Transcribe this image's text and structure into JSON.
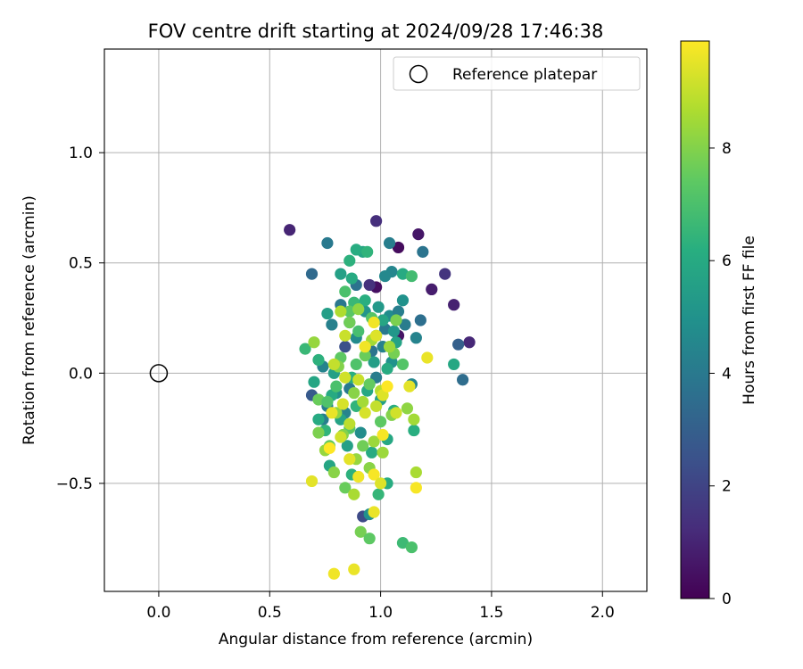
{
  "chart_data": {
    "type": "scatter",
    "title": "FOV centre drift starting at 2024/09/28 17:46:38",
    "xlabel": "Angular distance from reference (arcmin)",
    "ylabel": "Rotation from reference (arcmin)",
    "xlim": [
      -0.245,
      2.2
    ],
    "ylim": [
      -0.99,
      1.47
    ],
    "xticks": [
      0.0,
      0.5,
      1.0,
      1.5,
      2.0
    ],
    "xtick_labels": [
      "0.0",
      "0.5",
      "1.0",
      "1.5",
      "2.0"
    ],
    "yticks": [
      -0.5,
      0.0,
      0.5,
      1.0
    ],
    "ytick_labels": [
      "−0.5",
      "0.0",
      "0.5",
      "1.0"
    ],
    "grid": true,
    "legend": {
      "placement": "top-right",
      "entries": [
        "Reference platepar"
      ]
    },
    "reference_point": {
      "x": 0.0,
      "y": 0.0
    },
    "colorbar": {
      "label": "Hours from first FF file",
      "colormap": "viridis",
      "range": [
        0,
        9.9
      ],
      "ticks": [
        0,
        2,
        4,
        6,
        8
      ],
      "tick_labels": [
        "0",
        "2",
        "4",
        "6",
        "8"
      ]
    },
    "points": [
      {
        "x": 0.59,
        "y": 0.65,
        "c": 1.0
      },
      {
        "x": 0.98,
        "y": 0.69,
        "c": 1.3
      },
      {
        "x": 1.17,
        "y": 0.63,
        "c": 0.6
      },
      {
        "x": 1.08,
        "y": 0.57,
        "c": 0.3
      },
      {
        "x": 1.29,
        "y": 0.45,
        "c": 1.5
      },
      {
        "x": 1.23,
        "y": 0.38,
        "c": 0.8
      },
      {
        "x": 1.33,
        "y": 0.31,
        "c": 0.9
      },
      {
        "x": 1.4,
        "y": 0.14,
        "c": 1.1
      },
      {
        "x": 1.08,
        "y": 0.17,
        "c": 0.5
      },
      {
        "x": 0.98,
        "y": 0.39,
        "c": 0.4
      },
      {
        "x": 0.95,
        "y": 0.4,
        "c": 1.4
      },
      {
        "x": 0.92,
        "y": -0.65,
        "c": 2.2
      },
      {
        "x": 0.69,
        "y": -0.1,
        "c": 2.8
      },
      {
        "x": 0.84,
        "y": 0.12,
        "c": 2.4
      },
      {
        "x": 1.35,
        "y": 0.13,
        "c": 3.0
      },
      {
        "x": 1.37,
        "y": -0.03,
        "c": 3.5
      },
      {
        "x": 0.69,
        "y": 0.45,
        "c": 3.4
      },
      {
        "x": 0.76,
        "y": 0.59,
        "c": 4.0
      },
      {
        "x": 1.04,
        "y": 0.59,
        "c": 4.2
      },
      {
        "x": 1.19,
        "y": 0.55,
        "c": 3.8
      },
      {
        "x": 1.18,
        "y": 0.24,
        "c": 3.6
      },
      {
        "x": 1.16,
        "y": 0.16,
        "c": 4.4
      },
      {
        "x": 1.11,
        "y": 0.22,
        "c": 4.1
      },
      {
        "x": 0.82,
        "y": 0.31,
        "c": 3.9
      },
      {
        "x": 0.78,
        "y": 0.22,
        "c": 4.3
      },
      {
        "x": 0.89,
        "y": 0.4,
        "c": 3.7
      },
      {
        "x": 1.05,
        "y": 0.46,
        "c": 4.5
      },
      {
        "x": 1.02,
        "y": 0.44,
        "c": 4.6
      },
      {
        "x": 1.02,
        "y": 0.2,
        "c": 4.0
      },
      {
        "x": 1.04,
        "y": 0.26,
        "c": 4.8
      },
      {
        "x": 1.08,
        "y": 0.28,
        "c": 4.2
      },
      {
        "x": 0.96,
        "y": 0.1,
        "c": 3.8
      },
      {
        "x": 0.86,
        "y": 0.23,
        "c": 4.6
      },
      {
        "x": 0.74,
        "y": 0.03,
        "c": 4.4
      },
      {
        "x": 0.76,
        "y": -0.15,
        "c": 4.2
      },
      {
        "x": 0.8,
        "y": -0.09,
        "c": 4.9
      },
      {
        "x": 0.86,
        "y": -0.07,
        "c": 4.0
      },
      {
        "x": 0.89,
        "y": 0.16,
        "c": 4.7
      },
      {
        "x": 1.01,
        "y": 0.12,
        "c": 4.3
      },
      {
        "x": 1.05,
        "y": 0.05,
        "c": 5.0
      },
      {
        "x": 1.14,
        "y": -0.05,
        "c": 4.5
      },
      {
        "x": 0.98,
        "y": -0.02,
        "c": 4.1
      },
      {
        "x": 0.91,
        "y": -0.27,
        "c": 4.8
      },
      {
        "x": 0.84,
        "y": -0.18,
        "c": 4.4
      },
      {
        "x": 0.74,
        "y": -0.21,
        "c": 4.2
      },
      {
        "x": 0.95,
        "y": -0.64,
        "c": 4.9
      },
      {
        "x": 0.93,
        "y": 0.28,
        "c": 5.1
      },
      {
        "x": 0.99,
        "y": 0.3,
        "c": 5.3
      },
      {
        "x": 1.1,
        "y": 0.33,
        "c": 5.0
      },
      {
        "x": 1.06,
        "y": 0.19,
        "c": 5.2
      },
      {
        "x": 0.76,
        "y": 0.27,
        "c": 5.5
      },
      {
        "x": 0.82,
        "y": 0.45,
        "c": 5.6
      },
      {
        "x": 0.92,
        "y": 0.55,
        "c": 5.8
      },
      {
        "x": 0.89,
        "y": 0.56,
        "c": 6.1
      },
      {
        "x": 0.87,
        "y": 0.43,
        "c": 6.0
      },
      {
        "x": 0.86,
        "y": 0.51,
        "c": 6.3
      },
      {
        "x": 1.1,
        "y": 0.45,
        "c": 6.0
      },
      {
        "x": 1.33,
        "y": 0.04,
        "c": 5.9
      },
      {
        "x": 0.94,
        "y": 0.55,
        "c": 6.4
      },
      {
        "x": 0.88,
        "y": 0.32,
        "c": 6.6
      },
      {
        "x": 0.93,
        "y": 0.33,
        "c": 6.2
      },
      {
        "x": 1.01,
        "y": 0.24,
        "c": 5.8
      },
      {
        "x": 0.98,
        "y": 0.17,
        "c": 6.1
      },
      {
        "x": 1.07,
        "y": 0.14,
        "c": 5.7
      },
      {
        "x": 1.03,
        "y": 0.02,
        "c": 6.0
      },
      {
        "x": 0.97,
        "y": 0.05,
        "c": 5.5
      },
      {
        "x": 0.94,
        "y": -0.08,
        "c": 5.9
      },
      {
        "x": 0.87,
        "y": -0.02,
        "c": 6.2
      },
      {
        "x": 0.79,
        "y": 0.0,
        "c": 5.6
      },
      {
        "x": 0.72,
        "y": 0.06,
        "c": 6.3
      },
      {
        "x": 0.7,
        "y": -0.04,
        "c": 5.8
      },
      {
        "x": 0.78,
        "y": -0.1,
        "c": 6.0
      },
      {
        "x": 0.82,
        "y": -0.21,
        "c": 5.7
      },
      {
        "x": 0.89,
        "y": -0.15,
        "c": 6.4
      },
      {
        "x": 1.0,
        "y": -0.12,
        "c": 5.6
      },
      {
        "x": 1.06,
        "y": -0.17,
        "c": 6.1
      },
      {
        "x": 1.15,
        "y": -0.26,
        "c": 6.2
      },
      {
        "x": 1.03,
        "y": -0.3,
        "c": 5.9
      },
      {
        "x": 0.96,
        "y": -0.36,
        "c": 6.0
      },
      {
        "x": 0.85,
        "y": -0.33,
        "c": 5.6
      },
      {
        "x": 0.77,
        "y": -0.42,
        "c": 5.8
      },
      {
        "x": 0.87,
        "y": -0.46,
        "c": 6.3
      },
      {
        "x": 1.03,
        "y": -0.5,
        "c": 6.1
      },
      {
        "x": 0.99,
        "y": -0.55,
        "c": 6.5
      },
      {
        "x": 0.75,
        "y": -0.26,
        "c": 6.4
      },
      {
        "x": 0.72,
        "y": -0.21,
        "c": 6.0
      },
      {
        "x": 0.66,
        "y": 0.11,
        "c": 6.6
      },
      {
        "x": 1.14,
        "y": 0.44,
        "c": 6.8
      },
      {
        "x": 1.1,
        "y": -0.77,
        "c": 6.7
      },
      {
        "x": 1.14,
        "y": -0.79,
        "c": 7.0
      },
      {
        "x": 0.84,
        "y": 0.37,
        "c": 7.0
      },
      {
        "x": 0.9,
        "y": 0.19,
        "c": 6.9
      },
      {
        "x": 0.96,
        "y": 0.25,
        "c": 7.2
      },
      {
        "x": 0.86,
        "y": 0.28,
        "c": 7.3
      },
      {
        "x": 0.82,
        "y": 0.07,
        "c": 7.4
      },
      {
        "x": 0.89,
        "y": 0.04,
        "c": 7.1
      },
      {
        "x": 0.95,
        "y": -0.05,
        "c": 7.5
      },
      {
        "x": 0.8,
        "y": -0.06,
        "c": 7.0
      },
      {
        "x": 0.72,
        "y": -0.12,
        "c": 7.6
      },
      {
        "x": 0.86,
        "y": -0.25,
        "c": 7.3
      },
      {
        "x": 0.92,
        "y": -0.33,
        "c": 7.7
      },
      {
        "x": 1.0,
        "y": -0.22,
        "c": 7.4
      },
      {
        "x": 1.1,
        "y": 0.04,
        "c": 7.2
      },
      {
        "x": 1.06,
        "y": 0.09,
        "c": 7.8
      },
      {
        "x": 0.77,
        "y": -0.33,
        "c": 7.5
      },
      {
        "x": 0.72,
        "y": -0.27,
        "c": 7.9
      },
      {
        "x": 0.76,
        "y": -0.13,
        "c": 7.1
      },
      {
        "x": 0.84,
        "y": -0.52,
        "c": 7.6
      },
      {
        "x": 0.91,
        "y": -0.72,
        "c": 7.8
      },
      {
        "x": 0.95,
        "y": -0.75,
        "c": 7.4
      },
      {
        "x": 0.86,
        "y": 0.23,
        "c": 7.7
      },
      {
        "x": 1.07,
        "y": 0.24,
        "c": 7.9
      },
      {
        "x": 0.93,
        "y": 0.08,
        "c": 7.6
      },
      {
        "x": 0.81,
        "y": 0.03,
        "c": 8.0
      },
      {
        "x": 0.88,
        "y": -0.09,
        "c": 8.1
      },
      {
        "x": 0.8,
        "y": -0.18,
        "c": 8.2
      },
      {
        "x": 0.83,
        "y": -0.28,
        "c": 8.0
      },
      {
        "x": 0.89,
        "y": -0.39,
        "c": 8.3
      },
      {
        "x": 0.95,
        "y": -0.43,
        "c": 8.1
      },
      {
        "x": 1.01,
        "y": -0.36,
        "c": 8.4
      },
      {
        "x": 1.05,
        "y": -0.19,
        "c": 8.0
      },
      {
        "x": 1.15,
        "y": -0.21,
        "c": 8.5
      },
      {
        "x": 1.16,
        "y": -0.45,
        "c": 8.6
      },
      {
        "x": 1.12,
        "y": -0.16,
        "c": 8.2
      },
      {
        "x": 1.04,
        "y": 0.12,
        "c": 8.4
      },
      {
        "x": 0.96,
        "y": 0.15,
        "c": 8.5
      },
      {
        "x": 0.9,
        "y": 0.29,
        "c": 8.2
      },
      {
        "x": 0.82,
        "y": 0.28,
        "c": 8.7
      },
      {
        "x": 0.75,
        "y": -0.35,
        "c": 8.3
      },
      {
        "x": 0.79,
        "y": -0.45,
        "c": 8.1
      },
      {
        "x": 0.88,
        "y": -0.55,
        "c": 8.6
      },
      {
        "x": 0.97,
        "y": -0.31,
        "c": 8.4
      },
      {
        "x": 1.0,
        "y": -0.08,
        "c": 8.8
      },
      {
        "x": 0.92,
        "y": -0.13,
        "c": 8.5
      },
      {
        "x": 0.86,
        "y": -0.23,
        "c": 8.9
      },
      {
        "x": 0.7,
        "y": 0.14,
        "c": 8.3
      },
      {
        "x": 0.79,
        "y": 0.04,
        "c": 9.0
      },
      {
        "x": 0.84,
        "y": -0.02,
        "c": 9.2
      },
      {
        "x": 0.9,
        "y": -0.03,
        "c": 9.1
      },
      {
        "x": 0.93,
        "y": -0.18,
        "c": 9.3
      },
      {
        "x": 0.98,
        "y": -0.15,
        "c": 9.0
      },
      {
        "x": 1.01,
        "y": -0.1,
        "c": 9.4
      },
      {
        "x": 1.07,
        "y": -0.18,
        "c": 9.2
      },
      {
        "x": 1.13,
        "y": -0.06,
        "c": 9.5
      },
      {
        "x": 1.21,
        "y": 0.07,
        "c": 9.6
      },
      {
        "x": 0.97,
        "y": 0.23,
        "c": 9.7
      },
      {
        "x": 0.98,
        "y": 0.17,
        "c": 9.4
      },
      {
        "x": 0.84,
        "y": 0.17,
        "c": 9.1
      },
      {
        "x": 0.83,
        "y": -0.14,
        "c": 9.3
      },
      {
        "x": 0.78,
        "y": -0.18,
        "c": 9.6
      },
      {
        "x": 0.82,
        "y": -0.29,
        "c": 9.2
      },
      {
        "x": 0.86,
        "y": -0.39,
        "c": 9.5
      },
      {
        "x": 0.9,
        "y": -0.47,
        "c": 9.7
      },
      {
        "x": 0.97,
        "y": -0.46,
        "c": 9.8
      },
      {
        "x": 1.0,
        "y": -0.5,
        "c": 9.4
      },
      {
        "x": 0.97,
        "y": -0.63,
        "c": 9.6
      },
      {
        "x": 1.16,
        "y": -0.52,
        "c": 9.8
      },
      {
        "x": 0.69,
        "y": -0.49,
        "c": 9.5
      },
      {
        "x": 0.79,
        "y": -0.91,
        "c": 9.7
      },
      {
        "x": 0.88,
        "y": -0.89,
        "c": 9.6
      },
      {
        "x": 0.77,
        "y": -0.34,
        "c": 9.9
      },
      {
        "x": 1.01,
        "y": -0.28,
        "c": 9.8
      },
      {
        "x": 1.03,
        "y": -0.06,
        "c": 9.9
      },
      {
        "x": 0.93,
        "y": 0.12,
        "c": 9.7
      }
    ]
  }
}
